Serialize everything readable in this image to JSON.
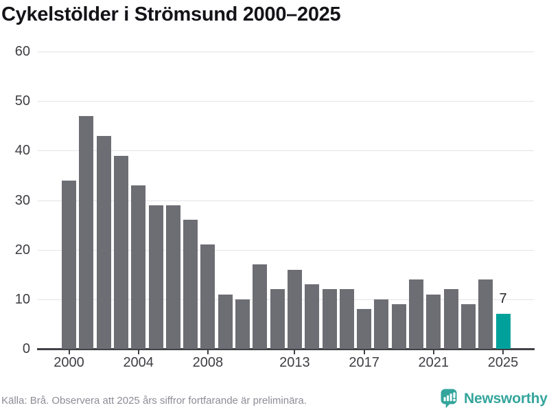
{
  "header": {
    "title": "Cykelstölder i Strömsund 2000–2025"
  },
  "chart_data": {
    "type": "bar",
    "title": "Cykelstölder i Strömsund 2000–2025",
    "xlabel": "",
    "ylabel": "",
    "x": [
      2000,
      2001,
      2002,
      2003,
      2004,
      2005,
      2006,
      2007,
      2008,
      2009,
      2010,
      2011,
      2012,
      2013,
      2014,
      2015,
      2016,
      2017,
      2018,
      2019,
      2020,
      2021,
      2022,
      2023,
      2024,
      2025
    ],
    "values": [
      34,
      47,
      43,
      39,
      33,
      29,
      29,
      26,
      21,
      11,
      10,
      17,
      12,
      16,
      13,
      12,
      12,
      8,
      10,
      9,
      14,
      11,
      12,
      9,
      14,
      7
    ],
    "highlight_x": 2025,
    "value_labels": [
      {
        "x": 2025,
        "text": "7"
      }
    ],
    "ylim": [
      0,
      60
    ],
    "y_ticks": [
      0,
      10,
      20,
      30,
      40,
      50,
      60
    ],
    "x_tick_labels": [
      "2000",
      "2004",
      "2008",
      "2013",
      "2017",
      "2021",
      "2025"
    ],
    "grid": true,
    "legend": "none",
    "colors": {
      "bar": "#6d6d74",
      "highlight": "#00a19b",
      "gridline": "#e3e3e6",
      "axis": "#3f3f46",
      "tick_label": "#3d3d43",
      "value_label": "#26262b"
    }
  },
  "footer": {
    "source_note": "Källa: Brå. Observera att 2025 års siffror fortfarande är preliminära.",
    "brand": "Newsworthy",
    "brand_color": "#33a59c"
  }
}
